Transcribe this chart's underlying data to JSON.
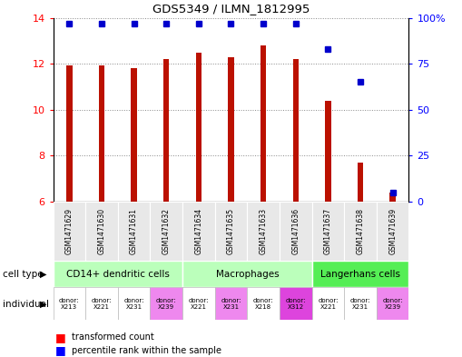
{
  "title": "GDS5349 / ILMN_1812995",
  "samples": [
    "GSM1471629",
    "GSM1471630",
    "GSM1471631",
    "GSM1471632",
    "GSM1471634",
    "GSM1471635",
    "GSM1471633",
    "GSM1471636",
    "GSM1471637",
    "GSM1471638",
    "GSM1471639"
  ],
  "transformed_counts": [
    11.95,
    11.95,
    11.8,
    12.2,
    12.5,
    12.3,
    12.8,
    12.2,
    10.4,
    7.7,
    6.4
  ],
  "percentile_ranks": [
    97,
    97,
    97,
    97,
    97,
    97,
    97,
    97,
    83,
    65,
    5
  ],
  "ylim_left": [
    6,
    14
  ],
  "ylim_right": [
    0,
    100
  ],
  "yticks_left": [
    6,
    8,
    10,
    12,
    14
  ],
  "yticks_right": [
    0,
    25,
    50,
    75,
    100
  ],
  "bar_color": "#bb1100",
  "dot_color": "#0000cc",
  "cell_groups": [
    {
      "label": "CD14+ dendritic cells",
      "cols": [
        0,
        1,
        2,
        3
      ],
      "color": "#bbffbb"
    },
    {
      "label": "Macrophages",
      "cols": [
        4,
        5,
        6,
        7
      ],
      "color": "#bbffbb"
    },
    {
      "label": "Langerhans cells",
      "cols": [
        8,
        9,
        10
      ],
      "color": "#55ee55"
    }
  ],
  "ind_colors": [
    "#ffffff",
    "#ffffff",
    "#ffffff",
    "#ee88ee",
    "#ffffff",
    "#ee88ee",
    "#ffffff",
    "#dd44dd",
    "#ffffff",
    "#ffffff",
    "#ee88ee"
  ],
  "ind_labels": [
    "donor:\nX213",
    "donor:\nX221",
    "donor:\nX231",
    "donor:\nX239",
    "donor:\nX221",
    "donor:\nX231",
    "donor:\nX218",
    "donor:\nX312",
    "donor:\nX221",
    "donor:\nX231",
    "donor:\nX239"
  ],
  "background_color": "#ffffff",
  "grid_color": "#888888"
}
